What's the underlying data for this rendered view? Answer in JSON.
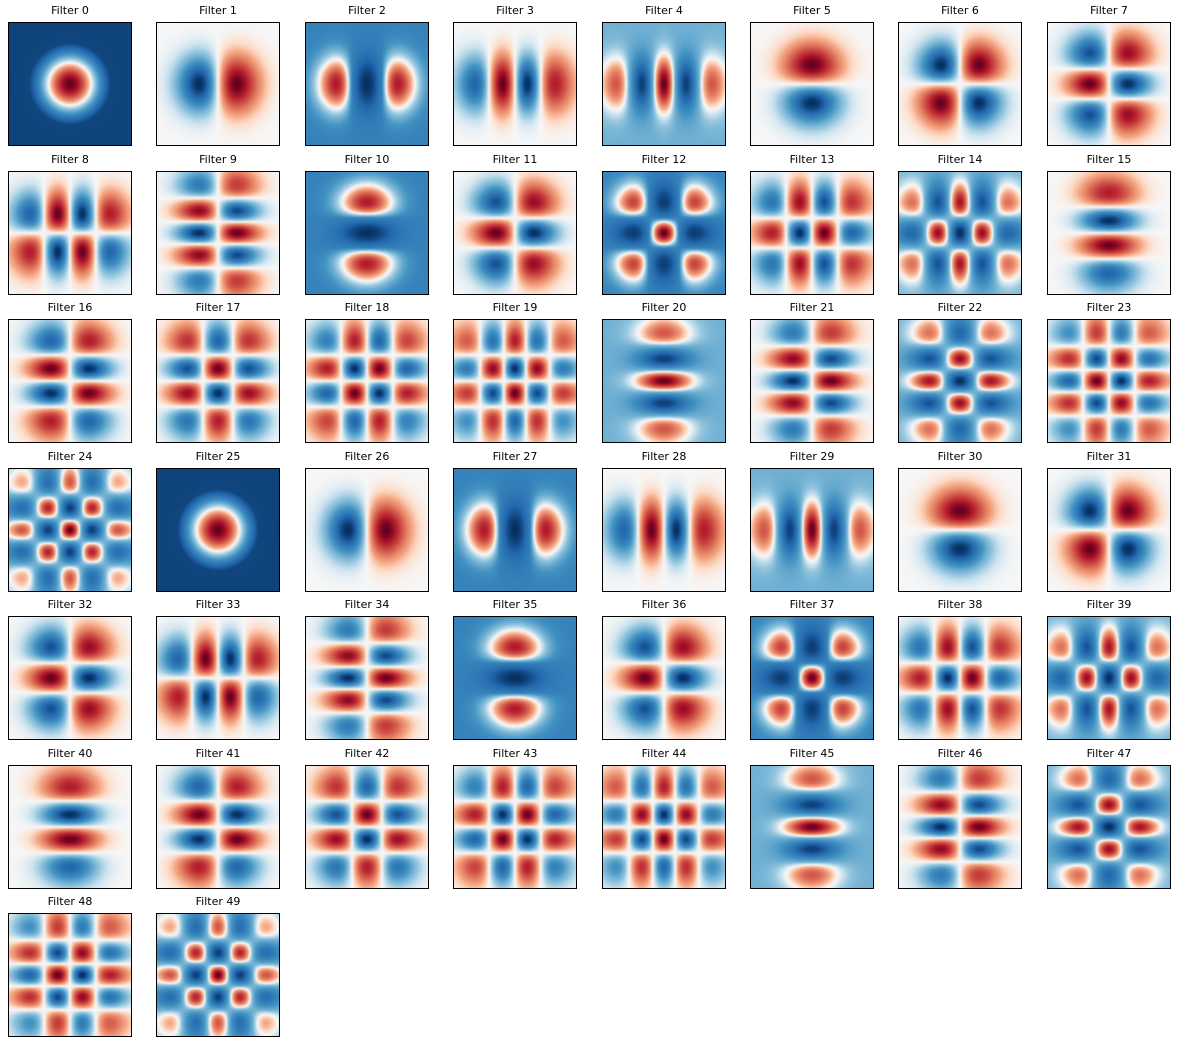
{
  "colors": {
    "pos": "#67001f",
    "mid": "#f7f7f7",
    "neg": "#053061"
  },
  "filters": [
    {
      "title": "Filter 0",
      "pattern": {
        "type": "radial",
        "n": 0,
        "bg": "neg-dark"
      }
    },
    {
      "title": "Filter 1",
      "pattern": {
        "type": "hermite",
        "nx": 1,
        "ny": 0,
        "bg": "mid"
      }
    },
    {
      "title": "Filter 2",
      "pattern": {
        "type": "hermite",
        "nx": 2,
        "ny": 0,
        "bg": "neg"
      }
    },
    {
      "title": "Filter 3",
      "pattern": {
        "type": "hermite",
        "nx": 3,
        "ny": 0,
        "bg": "mid"
      }
    },
    {
      "title": "Filter 4",
      "pattern": {
        "type": "hermite",
        "nx": 4,
        "ny": 0,
        "bg": "neg-light"
      }
    },
    {
      "title": "Filter 5",
      "pattern": {
        "type": "hermite",
        "nx": 0,
        "ny": 1,
        "bg": "mid"
      }
    },
    {
      "title": "Filter 6",
      "pattern": {
        "type": "hermite",
        "nx": 1,
        "ny": 1,
        "bg": "mid"
      }
    },
    {
      "title": "Filter 7",
      "pattern": {
        "type": "hermite",
        "nx": 2,
        "ny": 1,
        "bg": "mid",
        "rot": 90
      }
    },
    {
      "title": "Filter 8",
      "pattern": {
        "type": "hermite",
        "nx": 3,
        "ny": 1,
        "bg": "mid"
      }
    },
    {
      "title": "Filter 9",
      "pattern": {
        "type": "hermite",
        "nx": 4,
        "ny": 1,
        "bg": "mid",
        "rot": 90
      }
    },
    {
      "title": "Filter 10",
      "pattern": {
        "type": "hermite",
        "nx": 0,
        "ny": 2,
        "bg": "neg"
      }
    },
    {
      "title": "Filter 11",
      "pattern": {
        "type": "hermite",
        "nx": 1,
        "ny": 2,
        "bg": "mid"
      }
    },
    {
      "title": "Filter 12",
      "pattern": {
        "type": "hermite",
        "nx": 2,
        "ny": 2,
        "bg": "neg"
      }
    },
    {
      "title": "Filter 13",
      "pattern": {
        "type": "hermite",
        "nx": 3,
        "ny": 2,
        "bg": "mid"
      }
    },
    {
      "title": "Filter 14",
      "pattern": {
        "type": "hermite",
        "nx": 4,
        "ny": 2,
        "bg": "neg-light"
      }
    },
    {
      "title": "Filter 15",
      "pattern": {
        "type": "hermite",
        "nx": 0,
        "ny": 3,
        "bg": "mid"
      }
    },
    {
      "title": "Filter 16",
      "pattern": {
        "type": "hermite",
        "nx": 1,
        "ny": 3,
        "bg": "mid"
      }
    },
    {
      "title": "Filter 17",
      "pattern": {
        "type": "hermite",
        "nx": 2,
        "ny": 3,
        "bg": "mid"
      }
    },
    {
      "title": "Filter 18",
      "pattern": {
        "type": "hermite",
        "nx": 3,
        "ny": 3,
        "bg": "mid"
      }
    },
    {
      "title": "Filter 19",
      "pattern": {
        "type": "hermite",
        "nx": 4,
        "ny": 3,
        "bg": "mid"
      }
    },
    {
      "title": "Filter 20",
      "pattern": {
        "type": "hermite",
        "nx": 0,
        "ny": 4,
        "bg": "neg-light"
      }
    },
    {
      "title": "Filter 21",
      "pattern": {
        "type": "hermite",
        "nx": 1,
        "ny": 4,
        "bg": "mid"
      }
    },
    {
      "title": "Filter 22",
      "pattern": {
        "type": "hermite",
        "nx": 2,
        "ny": 4,
        "bg": "neg-light"
      }
    },
    {
      "title": "Filter 23",
      "pattern": {
        "type": "hermite",
        "nx": 3,
        "ny": 4,
        "bg": "mid"
      }
    },
    {
      "title": "Filter 24",
      "pattern": {
        "type": "hermite",
        "nx": 4,
        "ny": 4,
        "bg": "neg-light"
      }
    },
    {
      "title": "Filter 25",
      "pattern": {
        "type": "radial",
        "n": 0,
        "bg": "neg-dark"
      }
    },
    {
      "title": "Filter 26",
      "pattern": {
        "type": "hermite",
        "nx": 1,
        "ny": 0,
        "bg": "mid"
      }
    },
    {
      "title": "Filter 27",
      "pattern": {
        "type": "hermite",
        "nx": 2,
        "ny": 0,
        "bg": "neg"
      }
    },
    {
      "title": "Filter 28",
      "pattern": {
        "type": "hermite",
        "nx": 3,
        "ny": 0,
        "bg": "mid"
      }
    },
    {
      "title": "Filter 29",
      "pattern": {
        "type": "hermite",
        "nx": 4,
        "ny": 0,
        "bg": "neg-light"
      }
    },
    {
      "title": "Filter 30",
      "pattern": {
        "type": "hermite",
        "nx": 0,
        "ny": 1,
        "bg": "mid"
      }
    },
    {
      "title": "Filter 31",
      "pattern": {
        "type": "hermite",
        "nx": 1,
        "ny": 1,
        "bg": "mid"
      }
    },
    {
      "title": "Filter 32",
      "pattern": {
        "type": "hermite",
        "nx": 2,
        "ny": 1,
        "bg": "mid",
        "rot": 90
      }
    },
    {
      "title": "Filter 33",
      "pattern": {
        "type": "hermite",
        "nx": 3,
        "ny": 1,
        "bg": "mid"
      }
    },
    {
      "title": "Filter 34",
      "pattern": {
        "type": "hermite",
        "nx": 4,
        "ny": 1,
        "bg": "mid",
        "rot": 90
      }
    },
    {
      "title": "Filter 35",
      "pattern": {
        "type": "hermite",
        "nx": 0,
        "ny": 2,
        "bg": "neg"
      }
    },
    {
      "title": "Filter 36",
      "pattern": {
        "type": "hermite",
        "nx": 1,
        "ny": 2,
        "bg": "mid"
      }
    },
    {
      "title": "Filter 37",
      "pattern": {
        "type": "hermite",
        "nx": 2,
        "ny": 2,
        "bg": "neg"
      }
    },
    {
      "title": "Filter 38",
      "pattern": {
        "type": "hermite",
        "nx": 3,
        "ny": 2,
        "bg": "mid"
      }
    },
    {
      "title": "Filter 39",
      "pattern": {
        "type": "hermite",
        "nx": 4,
        "ny": 2,
        "bg": "neg-light"
      }
    },
    {
      "title": "Filter 40",
      "pattern": {
        "type": "hermite",
        "nx": 0,
        "ny": 3,
        "bg": "mid"
      }
    },
    {
      "title": "Filter 41",
      "pattern": {
        "type": "hermite",
        "nx": 1,
        "ny": 3,
        "bg": "mid"
      }
    },
    {
      "title": "Filter 42",
      "pattern": {
        "type": "hermite",
        "nx": 2,
        "ny": 3,
        "bg": "mid"
      }
    },
    {
      "title": "Filter 43",
      "pattern": {
        "type": "hermite",
        "nx": 3,
        "ny": 3,
        "bg": "mid"
      }
    },
    {
      "title": "Filter 44",
      "pattern": {
        "type": "hermite",
        "nx": 4,
        "ny": 3,
        "bg": "mid"
      }
    },
    {
      "title": "Filter 45",
      "pattern": {
        "type": "hermite",
        "nx": 0,
        "ny": 4,
        "bg": "neg-light"
      }
    },
    {
      "title": "Filter 46",
      "pattern": {
        "type": "hermite",
        "nx": 1,
        "ny": 4,
        "bg": "mid"
      }
    },
    {
      "title": "Filter 47",
      "pattern": {
        "type": "hermite",
        "nx": 2,
        "ny": 4,
        "bg": "neg-light"
      }
    },
    {
      "title": "Filter 48",
      "pattern": {
        "type": "hermite",
        "nx": 3,
        "ny": 4,
        "bg": "mid"
      }
    },
    {
      "title": "Filter 49",
      "pattern": {
        "type": "hermite",
        "nx": 4,
        "ny": 4,
        "bg": "neg-light"
      }
    }
  ]
}
